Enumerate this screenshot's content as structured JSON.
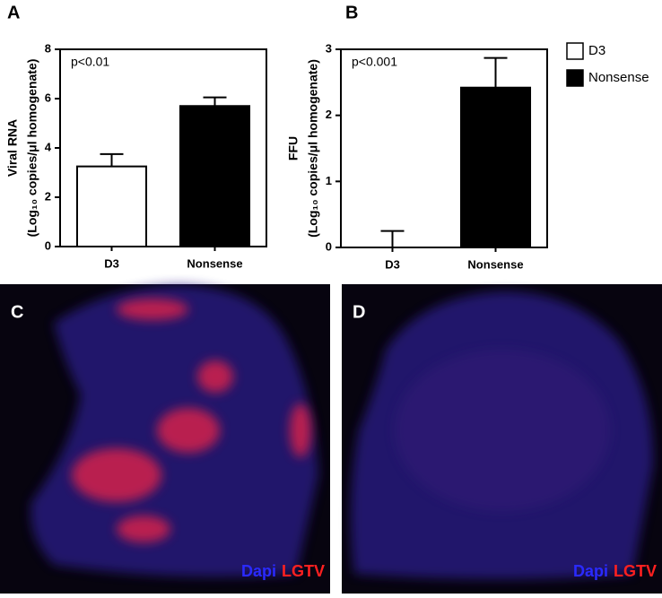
{
  "chart_data": [
    {
      "type": "bar",
      "panel": "A",
      "ylabel": [
        "Viral RNA",
        "(Log₁₀ copies/μl homogenate)"
      ],
      "annotation": "p<0.01",
      "categories": [
        "D3",
        "Nonsense"
      ],
      "values": [
        3.25,
        5.7
      ],
      "errors": [
        0.5,
        0.35
      ],
      "colors": [
        "#ffffff",
        "#000000"
      ],
      "ylim": [
        0,
        8
      ],
      "yticks": [
        0,
        2,
        4,
        6,
        8
      ]
    },
    {
      "type": "bar",
      "panel": "B",
      "ylabel": [
        "FFU",
        "(Log₁₀ copies/μl homogenate)"
      ],
      "annotation": "p<0.001",
      "categories": [
        "D3",
        "Nonsense"
      ],
      "values": [
        0,
        2.42
      ],
      "errors": [
        0.25,
        0.45
      ],
      "colors": [
        "#ffffff",
        "#000000"
      ],
      "ylim": [
        0,
        3
      ],
      "yticks": [
        0,
        1,
        2,
        3
      ],
      "legend": [
        {
          "name": "D3",
          "color": "#ffffff"
        },
        {
          "name": "Nonsense",
          "color": "#000000"
        }
      ]
    }
  ],
  "images": [
    {
      "panel": "C",
      "stain_labels": [
        "Dapi",
        "LGTV"
      ]
    },
    {
      "panel": "D",
      "stain_labels": [
        "Dapi",
        "LGTV"
      ]
    }
  ]
}
